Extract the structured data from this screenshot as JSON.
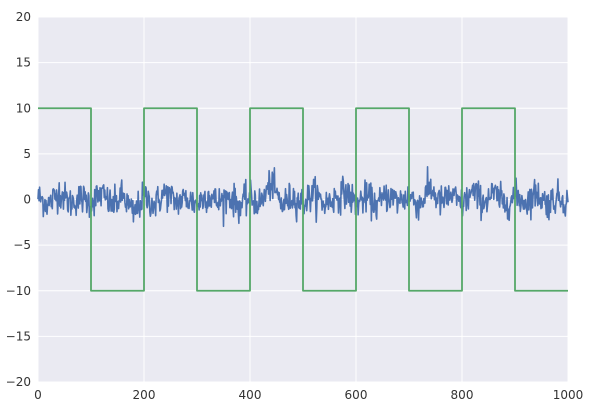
{
  "chart_data": {
    "type": "line",
    "title": "",
    "xlabel": "",
    "ylabel": "",
    "xlim": [
      0,
      1000
    ],
    "ylim": [
      -20,
      20
    ],
    "x_ticks": [
      0,
      200,
      400,
      600,
      800,
      1000
    ],
    "y_ticks": [
      -20,
      -15,
      -10,
      -5,
      0,
      5,
      10,
      15,
      20
    ],
    "grid": true,
    "legend": "none",
    "series": [
      {
        "color": "#4c72b0",
        "description": "noise around 0, amplitude approx ±1 (occasional spikes to about ±3.5), 1000 samples",
        "x": [
          0,
          20,
          40,
          60,
          80,
          100,
          120,
          140,
          160,
          180,
          200,
          220,
          240,
          260,
          280,
          300,
          320,
          340,
          360,
          380,
          400,
          420,
          440,
          460,
          480,
          500,
          520,
          540,
          560,
          580,
          600,
          620,
          640,
          660,
          680,
          700,
          720,
          740,
          760,
          780,
          800,
          820,
          840,
          860,
          880,
          900,
          920,
          940,
          960,
          980,
          1000
        ],
        "y": [
          0.6,
          -1.1,
          1.7,
          -0.8,
          0.4,
          -0.6,
          1.3,
          -1.5,
          0.9,
          -3.3,
          0.7,
          -1.2,
          1.5,
          -0.5,
          0.2,
          -1.0,
          1.1,
          -0.7,
          0.8,
          -1.4,
          0.5,
          -0.9,
          3.7,
          -1.2,
          0.6,
          -0.8,
          1.4,
          -1.0,
          0.3,
          1.7,
          -0.9,
          0.5,
          -1.3,
          1.0,
          -0.4,
          0.8,
          -1.1,
          2.5,
          -0.7,
          0.9,
          -1.2,
          1.6,
          -0.5,
          1.3,
          -1.0,
          0.7,
          -0.6,
          1.4,
          -0.9,
          0.5,
          -0.3
        ]
      },
      {
        "color": "#55a868",
        "description": "square wave, period 200",
        "x": [
          0,
          100,
          100,
          200,
          200,
          300,
          300,
          400,
          400,
          500,
          500,
          600,
          600,
          700,
          700,
          800,
          800,
          900,
          900,
          1000
        ],
        "y": [
          10,
          10,
          -10,
          -10,
          10,
          10,
          -10,
          -10,
          10,
          10,
          -10,
          -10,
          10,
          10,
          -10,
          -10,
          10,
          10,
          -10,
          -10
        ]
      }
    ]
  }
}
